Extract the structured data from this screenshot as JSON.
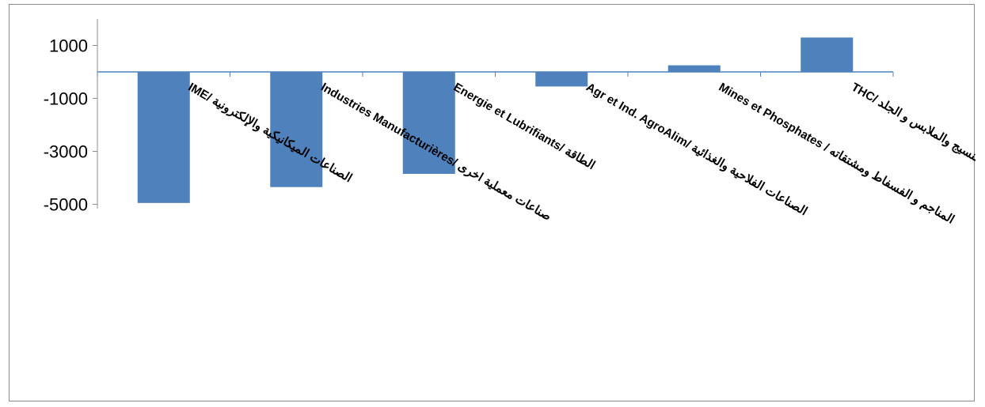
{
  "chart_data": {
    "type": "bar",
    "title": "",
    "xlabel": "",
    "ylabel": "",
    "categories": [
      "IME/ الصناعات الميكانيكية والإلكترونية",
      "Industries Manufacturières/ صناعات معملية اخرى",
      "Energie et Lubrifiants/ الطاقة",
      "Agr et Ind. AgroAlim/ الصناعات الفلاحية والغذائية",
      "Mines et Phosphates / المناجم و الفسفاط ومشتقاته",
      "THC/ النسيج والملابس و الجلد"
    ],
    "values": [
      -4950,
      -4350,
      -3850,
      -550,
      250,
      1300
    ],
    "yticks": [
      1000,
      -1000,
      -3000,
      -5000
    ],
    "ylim": [
      -5000,
      2000
    ],
    "grid": false,
    "legend": "none",
    "bar_color": "#4f81bd",
    "axis_color": "#4f81bd"
  }
}
